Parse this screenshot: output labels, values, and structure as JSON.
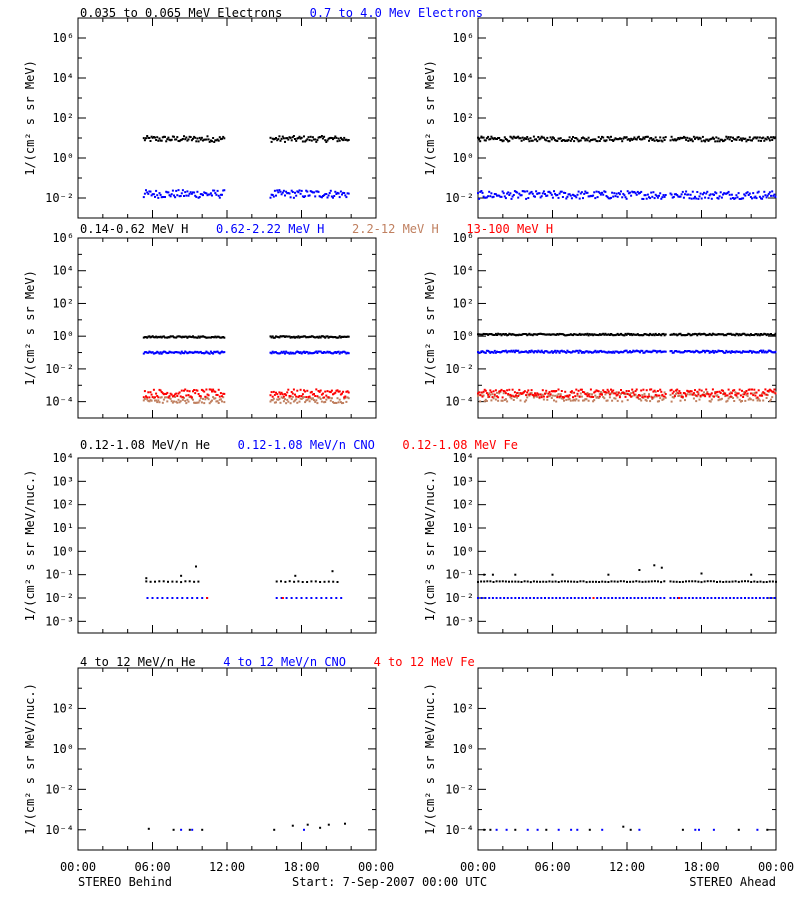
{
  "colors": {
    "black": "#000000",
    "blue": "#0000ff",
    "salmon": "#c08060",
    "red": "#ff0000"
  },
  "time_axis": {
    "ticks": [
      "00:00",
      "06:00",
      "12:00",
      "18:00",
      "00:00"
    ],
    "hours": [
      0,
      6,
      12,
      18,
      24
    ],
    "left_caption": "STEREO Behind",
    "center_caption": "Start:  7-Sep-2007 00:00 UTC",
    "right_caption": "STEREO Ahead"
  },
  "chart_data": [
    {
      "type": "scatter",
      "row": "electrons",
      "side": "behind",
      "ylabel": "1/(cm² s sr MeV)",
      "scale": "log",
      "ylim_exp": [
        -3,
        7
      ],
      "ticks": [
        {
          "exp": -2,
          "label": "10⁻²"
        },
        {
          "exp": 0,
          "label": "10⁰"
        },
        {
          "exp": 2,
          "label": "10²"
        },
        {
          "exp": 4,
          "label": "10⁴"
        },
        {
          "exp": 6,
          "label": "10⁶"
        }
      ],
      "series": [
        {
          "name": "0.035 to 0.065 MeV Electrons",
          "color": "black",
          "level_exp": 0.95,
          "jitter": 0.15,
          "segments": [
            [
              5.3,
              11.8
            ],
            [
              15.5,
              21.8
            ]
          ]
        },
        {
          "name": "0.7 to 4.0 Mev Electrons",
          "color": "blue",
          "level_exp": -1.8,
          "jitter": 0.2,
          "segments": [
            [
              5.3,
              11.8
            ],
            [
              15.5,
              21.8
            ]
          ]
        }
      ]
    },
    {
      "type": "scatter",
      "row": "electrons",
      "side": "ahead",
      "ylabel": "1/(cm² s sr MeV)",
      "scale": "log",
      "ylim_exp": [
        -3,
        7
      ],
      "ticks": [
        {
          "exp": -2,
          "label": "10⁻²"
        },
        {
          "exp": 0,
          "label": "10⁰"
        },
        {
          "exp": 2,
          "label": "10²"
        },
        {
          "exp": 4,
          "label": "10⁴"
        },
        {
          "exp": 6,
          "label": "10⁶"
        }
      ],
      "series": [
        {
          "name": "0.035 to 0.065 MeV Electrons",
          "color": "black",
          "level_exp": 0.95,
          "jitter": 0.12,
          "segments": [
            [
              0,
              15.2
            ],
            [
              15.5,
              24
            ]
          ]
        },
        {
          "name": "0.7 to 4.0 Mev Electrons",
          "color": "blue",
          "level_exp": -1.85,
          "jitter": 0.2,
          "segments": [
            [
              0,
              15.2
            ],
            [
              15.5,
              24
            ]
          ]
        }
      ]
    },
    {
      "type": "scatter",
      "row": "protons",
      "side": "behind",
      "ylabel": "1/(cm² s sr MeV)",
      "scale": "log",
      "ylim_exp": [
        -5,
        6
      ],
      "ticks": [
        {
          "exp": -4,
          "label": "10⁻⁴"
        },
        {
          "exp": -2,
          "label": "10⁻²"
        },
        {
          "exp": 0,
          "label": "10⁰"
        },
        {
          "exp": 2,
          "label": "10²"
        },
        {
          "exp": 4,
          "label": "10⁴"
        },
        {
          "exp": 6,
          "label": "10⁶"
        }
      ],
      "series": [
        {
          "name": "0.14-0.62 MeV H",
          "color": "black",
          "level_exp": -0.05,
          "jitter": 0.05,
          "segments": [
            [
              5.3,
              11.8
            ],
            [
              15.5,
              21.8
            ]
          ]
        },
        {
          "name": "0.62-2.22 MeV H",
          "color": "blue",
          "level_exp": -1.0,
          "jitter": 0.07,
          "segments": [
            [
              5.3,
              11.8
            ],
            [
              15.5,
              21.8
            ]
          ]
        },
        {
          "name": "2.2-12 MeV H",
          "color": "salmon",
          "level_exp": -3.9,
          "jitter": 0.2,
          "segments": [
            [
              5.3,
              11.8
            ],
            [
              15.5,
              21.8
            ]
          ]
        },
        {
          "name": "13-100 MeV H",
          "color": "red",
          "level_exp": -3.5,
          "jitter": 0.25,
          "segments": [
            [
              5.3,
              11.8
            ],
            [
              15.5,
              21.8
            ]
          ]
        }
      ]
    },
    {
      "type": "scatter",
      "row": "protons",
      "side": "ahead",
      "ylabel": "1/(cm² s sr MeV)",
      "scale": "log",
      "ylim_exp": [
        -5,
        6
      ],
      "ticks": [
        {
          "exp": -4,
          "label": "10⁻⁴"
        },
        {
          "exp": -2,
          "label": "10⁻²"
        },
        {
          "exp": 0,
          "label": "10⁰"
        },
        {
          "exp": 2,
          "label": "10²"
        },
        {
          "exp": 4,
          "label": "10⁴"
        },
        {
          "exp": 6,
          "label": "10⁶"
        }
      ],
      "series": [
        {
          "name": "0.14-0.62 MeV H",
          "color": "black",
          "level_exp": 0.1,
          "jitter": 0.05,
          "segments": [
            [
              0,
              15.2
            ],
            [
              15.5,
              24
            ]
          ]
        },
        {
          "name": "0.62-2.22 MeV H",
          "color": "blue",
          "level_exp": -0.95,
          "jitter": 0.07,
          "segments": [
            [
              0,
              15.2
            ],
            [
              15.5,
              24
            ]
          ]
        },
        {
          "name": "2.2-12 MeV H",
          "color": "salmon",
          "level_exp": -3.7,
          "jitter": 0.3,
          "segments": [
            [
              0,
              15.2
            ],
            [
              15.5,
              24
            ]
          ]
        },
        {
          "name": "13-100 MeV H",
          "color": "red",
          "level_exp": -3.5,
          "jitter": 0.25,
          "segments": [
            [
              0,
              15.2
            ],
            [
              15.5,
              24
            ]
          ]
        }
      ]
    },
    {
      "type": "scatter",
      "row": "low_energy_ions",
      "side": "behind",
      "ylabel": "1/(cm² s sr MeV/nuc.)",
      "scale": "log",
      "ylim_exp": [
        -3.5,
        4
      ],
      "ticks": [
        {
          "exp": -3,
          "label": "10⁻³"
        },
        {
          "exp": -2,
          "label": "10⁻²"
        },
        {
          "exp": -1,
          "label": "10⁻¹"
        },
        {
          "exp": 0,
          "label": "10⁰"
        },
        {
          "exp": 1,
          "label": "10¹"
        },
        {
          "exp": 2,
          "label": "10²"
        },
        {
          "exp": 3,
          "label": "10³"
        },
        {
          "exp": 4,
          "label": "10⁴"
        }
      ],
      "series": [
        {
          "name": "0.12-1.08 MeV/n He",
          "color": "black",
          "level_exp": -1.3,
          "jitter": 0.02,
          "step": 0.35,
          "segments": [
            [
              5.5,
              10.0
            ],
            [
              16.0,
              21.0
            ]
          ],
          "outliers": [
            [
              5.5,
              -1.15
            ],
            [
              8.3,
              -1.05
            ],
            [
              9.5,
              -0.65
            ],
            [
              17.5,
              -1.05
            ],
            [
              20.5,
              -0.85
            ]
          ]
        },
        {
          "name": "0.12-1.08 MeV/n CNO",
          "color": "blue",
          "level_exp": -2.0,
          "jitter": 0.0,
          "step": 0.4,
          "segments": [
            [
              5.6,
              10.8
            ],
            [
              16.0,
              21.3
            ]
          ]
        },
        {
          "name": "0.12-1.08 MeV Fe",
          "color": "red",
          "level_exp": -2.0,
          "jitter": 0.0,
          "step": 2.0,
          "segments": [
            [
              10.4,
              10.8
            ],
            [
              16.5,
              16.9
            ]
          ]
        }
      ]
    },
    {
      "type": "scatter",
      "row": "low_energy_ions",
      "side": "ahead",
      "ylabel": "1/(cm² s sr MeV/nuc.)",
      "scale": "log",
      "ylim_exp": [
        -3.5,
        4
      ],
      "ticks": [
        {
          "exp": -3,
          "label": "10⁻³"
        },
        {
          "exp": -2,
          "label": "10⁻²"
        },
        {
          "exp": -1,
          "label": "10⁻¹"
        },
        {
          "exp": 0,
          "label": "10⁰"
        },
        {
          "exp": 1,
          "label": "10¹"
        },
        {
          "exp": 2,
          "label": "10²"
        },
        {
          "exp": 3,
          "label": "10³"
        },
        {
          "exp": 4,
          "label": "10⁴"
        }
      ],
      "series": [
        {
          "name": "0.12-1.08 MeV/n He",
          "color": "black",
          "level_exp": -1.3,
          "jitter": 0.02,
          "step": 0.25,
          "segments": [
            [
              0,
              15.2
            ],
            [
              15.5,
              24
            ]
          ],
          "outliers": [
            [
              0.5,
              -1.0
            ],
            [
              1.2,
              -1.0
            ],
            [
              3.0,
              -1.0
            ],
            [
              6.0,
              -1.0
            ],
            [
              10.5,
              -1.0
            ],
            [
              13.0,
              -0.8
            ],
            [
              14.2,
              -0.6
            ],
            [
              14.8,
              -0.7
            ],
            [
              18.0,
              -0.95
            ],
            [
              22.0,
              -1.0
            ]
          ]
        },
        {
          "name": "0.12-1.08 MeV/n CNO",
          "color": "blue",
          "level_exp": -2.0,
          "jitter": 0.0,
          "step": 0.3,
          "segments": [
            [
              0,
              15.2
            ],
            [
              15.5,
              24
            ]
          ]
        },
        {
          "name": "0.12-1.08 MeV Fe",
          "color": "red",
          "level_exp": -2.0,
          "jitter": 0.0,
          "step": 1.5,
          "segments": [
            [
              9.3,
              10.0
            ],
            [
              16.2,
              16.8
            ]
          ]
        }
      ]
    },
    {
      "type": "scatter",
      "row": "high_energy_ions",
      "side": "behind",
      "ylabel": "1/(cm² s sr MeV/nuc.)",
      "scale": "log",
      "ylim_exp": [
        -5,
        4
      ],
      "ticks": [
        {
          "exp": -4,
          "label": "10⁻⁴"
        },
        {
          "exp": -2,
          "label": "10⁻²"
        },
        {
          "exp": 0,
          "label": "10⁰"
        },
        {
          "exp": 2,
          "label": "10²"
        }
      ],
      "series": [
        {
          "name": "4 to 12 MeV/n He",
          "color": "black",
          "level_exp": -4.0,
          "jitter": 0.0,
          "points": [
            [
              5.7,
              -3.95
            ],
            [
              7.7,
              -4.0
            ],
            [
              9.0,
              -4.0
            ],
            [
              10.0,
              -4.0
            ],
            [
              15.8,
              -4.0
            ],
            [
              17.3,
              -3.8
            ],
            [
              18.5,
              -3.75
            ],
            [
              19.5,
              -3.9
            ],
            [
              20.2,
              -3.75
            ],
            [
              21.5,
              -3.7
            ]
          ]
        },
        {
          "name": "4 to 12 MeV/n CNO",
          "color": "blue",
          "level_exp": -4.0,
          "jitter": 0.0,
          "points": [
            [
              8.3,
              -4.0
            ],
            [
              9.2,
              -4.0
            ],
            [
              18.2,
              -4.0
            ]
          ]
        },
        {
          "name": "4 to 12 MeV Fe",
          "color": "red",
          "level_exp": -4.0,
          "jitter": 0.0,
          "points": []
        }
      ]
    },
    {
      "type": "scatter",
      "row": "high_energy_ions",
      "side": "ahead",
      "ylabel": "1/(cm² s sr MeV/nuc.)",
      "scale": "log",
      "ylim_exp": [
        -5,
        4
      ],
      "ticks": [
        {
          "exp": -4,
          "label": "10⁻⁴"
        },
        {
          "exp": -2,
          "label": "10⁻²"
        },
        {
          "exp": 0,
          "label": "10⁰"
        },
        {
          "exp": 2,
          "label": "10²"
        }
      ],
      "series": [
        {
          "name": "4 to 12 MeV/n He",
          "color": "black",
          "level_exp": -4.0,
          "jitter": 0.0,
          "points": [
            [
              0.5,
              -4.0
            ],
            [
              1.0,
              -4.0
            ],
            [
              3.0,
              -4.0
            ],
            [
              5.5,
              -4.0
            ],
            [
              9.0,
              -4.0
            ],
            [
              11.7,
              -3.85
            ],
            [
              12.3,
              -4.0
            ],
            [
              16.5,
              -4.0
            ],
            [
              21.0,
              -4.0
            ],
            [
              23.3,
              -4.0
            ]
          ]
        },
        {
          "name": "4 to 12 MeV/n CNO",
          "color": "blue",
          "level_exp": -4.0,
          "jitter": 0.0,
          "points": [
            [
              1.5,
              -4.0
            ],
            [
              2.3,
              -4.0
            ],
            [
              4.0,
              -4.0
            ],
            [
              4.8,
              -4.0
            ],
            [
              6.5,
              -4.0
            ],
            [
              7.5,
              -4.0
            ],
            [
              8.0,
              -4.0
            ],
            [
              10.0,
              -4.0
            ],
            [
              13.0,
              -4.0
            ],
            [
              17.5,
              -4.0
            ],
            [
              17.8,
              -4.0
            ],
            [
              19.0,
              -4.0
            ],
            [
              22.5,
              -4.0
            ]
          ]
        },
        {
          "name": "4 to 12 MeV Fe",
          "color": "red",
          "level_exp": -4.0,
          "jitter": 0.0,
          "points": []
        }
      ]
    }
  ],
  "row_titles": [
    [
      {
        "text": "0.035 to 0.065 MeV Electrons",
        "color": "black"
      },
      {
        "text": "0.7 to 4.0 Mev Electrons",
        "color": "blue"
      }
    ],
    [
      {
        "text": "0.14-0.62 MeV H",
        "color": "black"
      },
      {
        "text": "0.62-2.22 MeV H",
        "color": "blue"
      },
      {
        "text": "2.2-12 MeV H",
        "color": "salmon"
      },
      {
        "text": "13-100 MeV H",
        "color": "red"
      }
    ],
    [
      {
        "text": "0.12-1.08 MeV/n He",
        "color": "black"
      },
      {
        "text": "0.12-1.08 MeV/n CNO",
        "color": "blue"
      },
      {
        "text": "0.12-1.08 MeV Fe",
        "color": "red"
      }
    ],
    [
      {
        "text": "4 to 12 MeV/n He",
        "color": "black"
      },
      {
        "text": "4 to 12 MeV/n CNO",
        "color": "blue"
      },
      {
        "text": "4 to 12 MeV Fe",
        "color": "red"
      }
    ]
  ]
}
